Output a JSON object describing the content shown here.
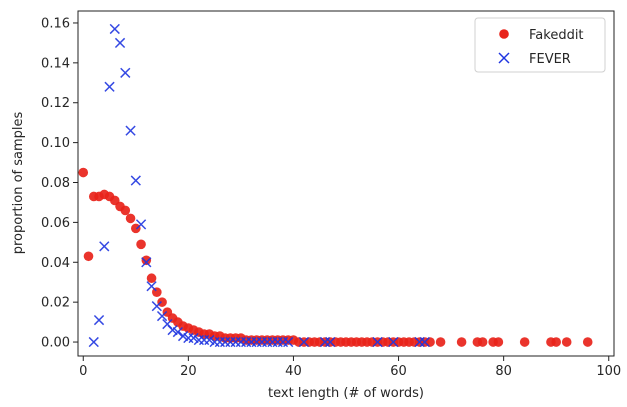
{
  "chart_data": {
    "type": "scatter",
    "title": "",
    "xlabel": "text length (# of words)",
    "ylabel": "proportion of samples",
    "xlim": [
      -1,
      101
    ],
    "ylim": [
      -0.007,
      0.166
    ],
    "xticks": [
      0,
      20,
      40,
      60,
      80,
      100
    ],
    "yticks": [
      0.0,
      0.02,
      0.04,
      0.06,
      0.08,
      0.1,
      0.12,
      0.14,
      0.16
    ],
    "xtick_labels": [
      "0",
      "20",
      "40",
      "60",
      "80",
      "100"
    ],
    "ytick_labels": [
      "0.00",
      "0.02",
      "0.04",
      "0.06",
      "0.08",
      "0.10",
      "0.12",
      "0.14",
      "0.16"
    ],
    "grid": false,
    "legend_position": "top-right",
    "series": [
      {
        "name": "Fakeddit",
        "marker": "circle",
        "color": "#e8231a",
        "points": [
          [
            0,
            0.085
          ],
          [
            1,
            0.043
          ],
          [
            2,
            0.073
          ],
          [
            3,
            0.073
          ],
          [
            4,
            0.074
          ],
          [
            5,
            0.073
          ],
          [
            6,
            0.071
          ],
          [
            7,
            0.068
          ],
          [
            8,
            0.066
          ],
          [
            9,
            0.062
          ],
          [
            10,
            0.057
          ],
          [
            11,
            0.049
          ],
          [
            12,
            0.041
          ],
          [
            13,
            0.032
          ],
          [
            14,
            0.025
          ],
          [
            15,
            0.02
          ],
          [
            16,
            0.015
          ],
          [
            17,
            0.012
          ],
          [
            18,
            0.01
          ],
          [
            19,
            0.008
          ],
          [
            20,
            0.007
          ],
          [
            21,
            0.006
          ],
          [
            22,
            0.005
          ],
          [
            23,
            0.004
          ],
          [
            24,
            0.004
          ],
          [
            25,
            0.003
          ],
          [
            26,
            0.003
          ],
          [
            27,
            0.002
          ],
          [
            28,
            0.002
          ],
          [
            29,
            0.002
          ],
          [
            30,
            0.002
          ],
          [
            31,
            0.001
          ],
          [
            32,
            0.001
          ],
          [
            33,
            0.001
          ],
          [
            34,
            0.001
          ],
          [
            35,
            0.001
          ],
          [
            36,
            0.001
          ],
          [
            37,
            0.001
          ],
          [
            38,
            0.001
          ],
          [
            39,
            0.001
          ],
          [
            40,
            0.001
          ],
          [
            41,
            0.0
          ],
          [
            42,
            0.0
          ],
          [
            43,
            0.0
          ],
          [
            44,
            0.0
          ],
          [
            45,
            0.0
          ],
          [
            46,
            0.0
          ],
          [
            47,
            0.0
          ],
          [
            48,
            0.0
          ],
          [
            49,
            0.0
          ],
          [
            50,
            0.0
          ],
          [
            51,
            0.0
          ],
          [
            52,
            0.0
          ],
          [
            53,
            0.0
          ],
          [
            54,
            0.0
          ],
          [
            55,
            0.0
          ],
          [
            56,
            0.0
          ],
          [
            57,
            0.0
          ],
          [
            58,
            0.0
          ],
          [
            59,
            0.0
          ],
          [
            60,
            0.0
          ],
          [
            61,
            0.0
          ],
          [
            62,
            0.0
          ],
          [
            63,
            0.0
          ],
          [
            64,
            0.0
          ],
          [
            65,
            0.0
          ],
          [
            66,
            0.0
          ],
          [
            68,
            0.0
          ],
          [
            72,
            0.0
          ],
          [
            75,
            0.0
          ],
          [
            76,
            0.0
          ],
          [
            78,
            0.0
          ],
          [
            79,
            0.0
          ],
          [
            84,
            0.0
          ],
          [
            89,
            0.0
          ],
          [
            90,
            0.0
          ],
          [
            92,
            0.0
          ],
          [
            96,
            0.0
          ]
        ]
      },
      {
        "name": "FEVER",
        "marker": "x",
        "color": "#1f35e0",
        "points": [
          [
            2,
            0.0
          ],
          [
            3,
            0.011
          ],
          [
            4,
            0.048
          ],
          [
            5,
            0.128
          ],
          [
            6,
            0.157
          ],
          [
            7,
            0.15
          ],
          [
            8,
            0.135
          ],
          [
            9,
            0.106
          ],
          [
            10,
            0.081
          ],
          [
            11,
            0.059
          ],
          [
            12,
            0.04
          ],
          [
            13,
            0.028
          ],
          [
            14,
            0.018
          ],
          [
            15,
            0.013
          ],
          [
            16,
            0.009
          ],
          [
            17,
            0.006
          ],
          [
            18,
            0.005
          ],
          [
            19,
            0.003
          ],
          [
            20,
            0.002
          ],
          [
            21,
            0.002
          ],
          [
            22,
            0.001
          ],
          [
            23,
            0.001
          ],
          [
            24,
            0.001
          ],
          [
            25,
            0.0
          ],
          [
            26,
            0.0
          ],
          [
            27,
            0.0
          ],
          [
            28,
            0.0
          ],
          [
            29,
            0.0
          ],
          [
            30,
            0.0
          ],
          [
            31,
            0.0
          ],
          [
            32,
            0.0
          ],
          [
            33,
            0.0
          ],
          [
            34,
            0.0
          ],
          [
            35,
            0.0
          ],
          [
            36,
            0.0
          ],
          [
            37,
            0.0
          ],
          [
            38,
            0.0
          ],
          [
            39,
            0.0
          ],
          [
            42,
            0.0
          ],
          [
            46,
            0.0
          ],
          [
            47,
            0.0
          ],
          [
            56,
            0.0
          ],
          [
            59,
            0.0
          ],
          [
            64,
            0.0
          ],
          [
            65,
            0.0
          ]
        ]
      }
    ]
  }
}
